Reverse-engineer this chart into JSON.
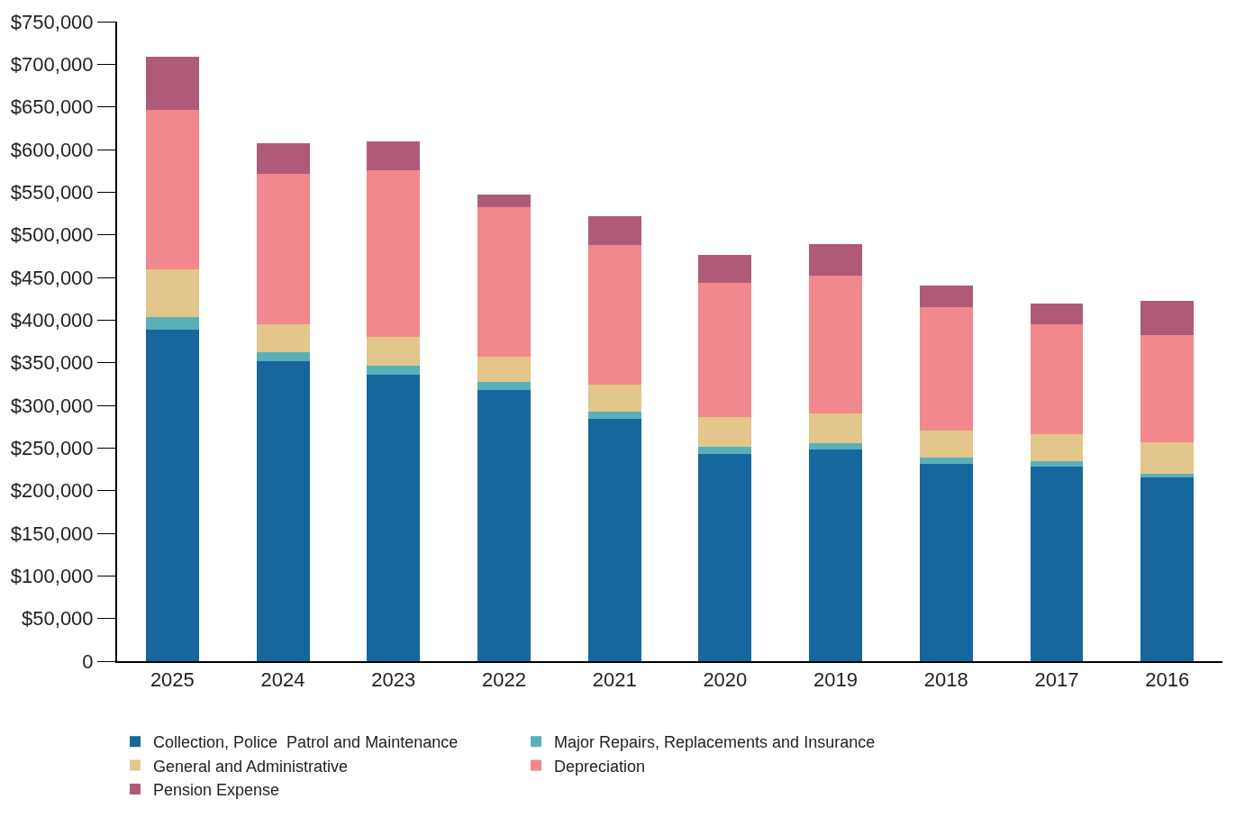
{
  "chart_data": {
    "type": "bar",
    "stacked": true,
    "categories": [
      "2025",
      "2024",
      "2023",
      "2022",
      "2021",
      "2020",
      "2019",
      "2018",
      "2017",
      "2016"
    ],
    "series": [
      {
        "name": "Collection, Police  Patrol and Maintenance",
        "color": "#17669e",
        "values": [
          389000,
          352000,
          336000,
          318000,
          284000,
          243000,
          248000,
          231000,
          228000,
          216000
        ]
      },
      {
        "name": "Major Repairs, Replacements and Insurance",
        "color": "#5ab0b8",
        "values": [
          14000,
          10000,
          11000,
          9000,
          9000,
          8000,
          8000,
          8000,
          7000,
          4000
        ]
      },
      {
        "name": "General and Administrative",
        "color": "#e2c68b",
        "values": [
          57000,
          33000,
          33000,
          30000,
          31000,
          35000,
          34000,
          31000,
          31000,
          37000
        ]
      },
      {
        "name": "Depreciation",
        "color": "#f1888e",
        "values": [
          187000,
          177000,
          196000,
          175000,
          164000,
          158000,
          162000,
          145000,
          129000,
          125000
        ]
      },
      {
        "name": "Pension Expense",
        "color": "#b05a7a",
        "values": [
          62000,
          35000,
          34000,
          15000,
          34000,
          32000,
          37000,
          25000,
          24000,
          41000
        ]
      }
    ],
    "ylim": [
      0,
      750000
    ],
    "yticks": [
      {
        "value": 0,
        "label": "0"
      },
      {
        "value": 50000,
        "label": "$50,000"
      },
      {
        "value": 100000,
        "label": "$100,000"
      },
      {
        "value": 150000,
        "label": "$150,000"
      },
      {
        "value": 200000,
        "label": "$200,000"
      },
      {
        "value": 250000,
        "label": "$250,000"
      },
      {
        "value": 300000,
        "label": "$300,000"
      },
      {
        "value": 350000,
        "label": "$350,000"
      },
      {
        "value": 400000,
        "label": "$400,000"
      },
      {
        "value": 450000,
        "label": "$450,000"
      },
      {
        "value": 500000,
        "label": "$500,000"
      },
      {
        "value": 550000,
        "label": "$550,000"
      },
      {
        "value": 600000,
        "label": "$600,000"
      },
      {
        "value": 650000,
        "label": "$650,000"
      },
      {
        "value": 700000,
        "label": "$700,000"
      },
      {
        "value": 750000,
        "label": "$750,000"
      }
    ],
    "legend": "bottom"
  }
}
